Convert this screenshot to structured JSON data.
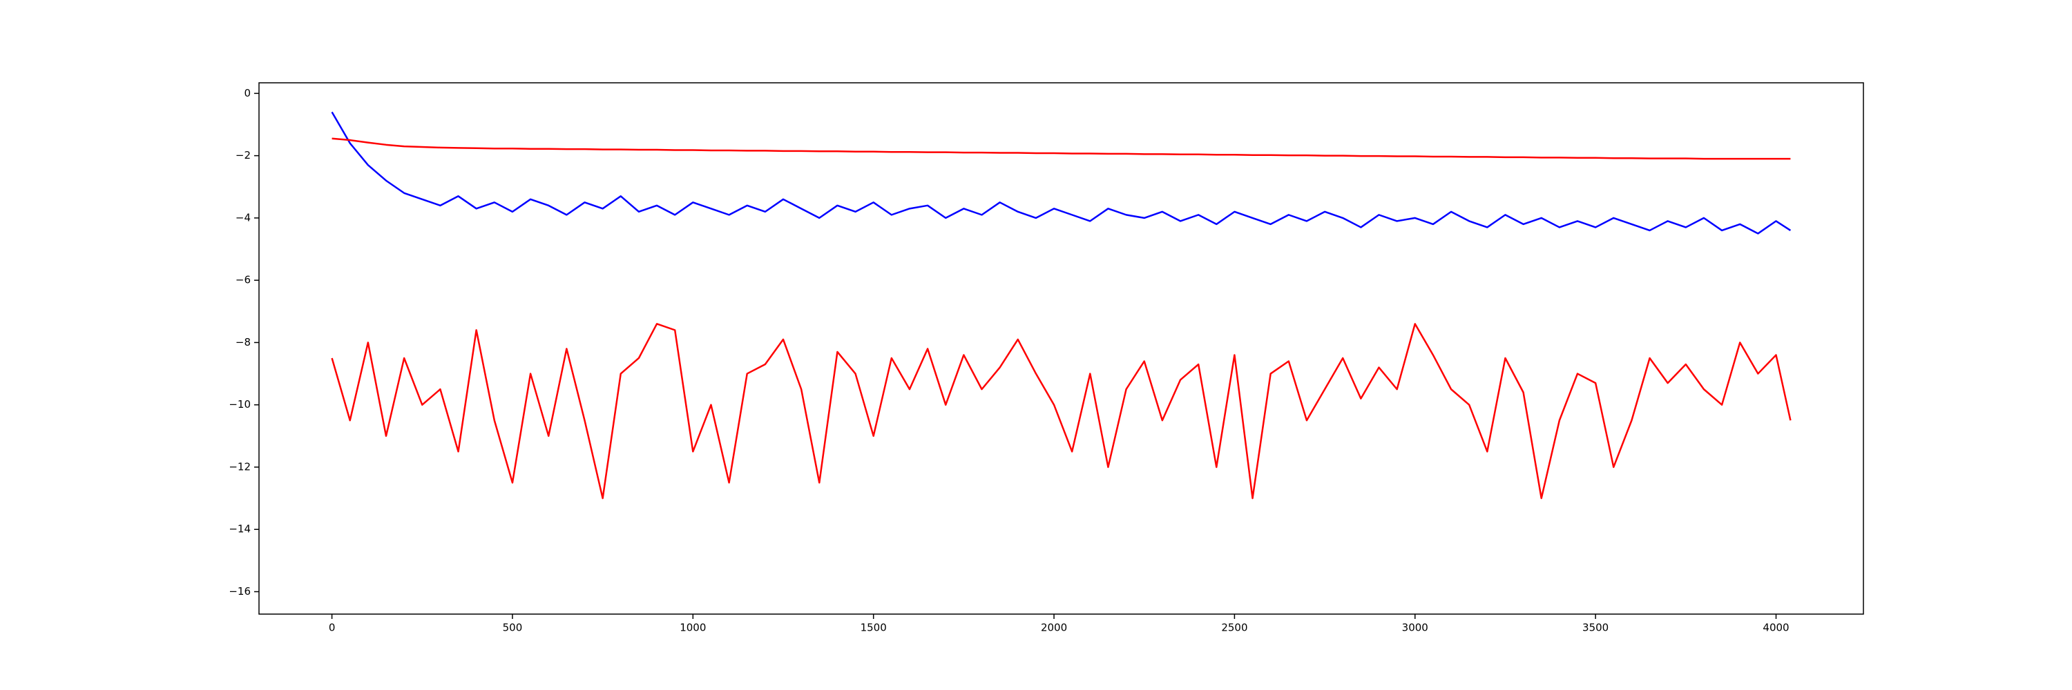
{
  "chart_data": {
    "type": "line",
    "x": [
      0,
      50,
      100,
      150,
      200,
      250,
      300,
      350,
      400,
      450,
      500,
      550,
      600,
      650,
      700,
      750,
      800,
      850,
      900,
      950,
      1000,
      1050,
      1100,
      1150,
      1200,
      1250,
      1300,
      1350,
      1400,
      1450,
      1500,
      1550,
      1600,
      1650,
      1700,
      1750,
      1800,
      1850,
      1900,
      1950,
      2000,
      2050,
      2100,
      2150,
      2200,
      2250,
      2300,
      2350,
      2400,
      2450,
      2500,
      2550,
      2600,
      2650,
      2700,
      2750,
      2800,
      2850,
      2900,
      2950,
      3000,
      3050,
      3100,
      3150,
      3200,
      3250,
      3300,
      3350,
      3400,
      3450,
      3500,
      3550,
      3600,
      3650,
      3700,
      3750,
      3800,
      3850,
      3900,
      3950,
      4000,
      4040
    ],
    "series": [
      {
        "color": "#0000ff",
        "values": [
          -0.6,
          -1.6,
          -2.3,
          -2.8,
          -3.2,
          -3.4,
          -3.6,
          -3.3,
          -3.7,
          -3.5,
          -3.8,
          -3.4,
          -3.6,
          -3.9,
          -3.5,
          -3.7,
          -3.3,
          -3.8,
          -3.6,
          -3.9,
          -3.5,
          -3.7,
          -3.9,
          -3.6,
          -3.8,
          -3.4,
          -3.7,
          -4.0,
          -3.6,
          -3.8,
          -3.5,
          -3.9,
          -3.7,
          -3.6,
          -4.0,
          -3.7,
          -3.9,
          -3.5,
          -3.8,
          -4.0,
          -3.7,
          -3.9,
          -4.1,
          -3.7,
          -3.9,
          -4.0,
          -3.8,
          -4.1,
          -3.9,
          -4.2,
          -3.8,
          -4.0,
          -4.2,
          -3.9,
          -4.1,
          -3.8,
          -4.0,
          -4.3,
          -3.9,
          -4.1,
          -4.0,
          -4.2,
          -3.8,
          -4.1,
          -4.3,
          -3.9,
          -4.2,
          -4.0,
          -4.3,
          -4.1,
          -4.3,
          -4.0,
          -4.2,
          -4.4,
          -4.1,
          -4.3,
          -4.0,
          -4.4,
          -4.2,
          -4.5,
          -4.1,
          -4.4
        ]
      },
      {
        "color": "#ff0000",
        "values": [
          -1.45,
          -1.5,
          -1.58,
          -1.65,
          -1.7,
          -1.72,
          -1.74,
          -1.75,
          -1.76,
          -1.77,
          -1.77,
          -1.78,
          -1.78,
          -1.79,
          -1.79,
          -1.8,
          -1.8,
          -1.81,
          -1.81,
          -1.82,
          -1.82,
          -1.83,
          -1.83,
          -1.84,
          -1.84,
          -1.85,
          -1.85,
          -1.86,
          -1.86,
          -1.87,
          -1.87,
          -1.88,
          -1.88,
          -1.89,
          -1.89,
          -1.9,
          -1.9,
          -1.91,
          -1.91,
          -1.92,
          -1.92,
          -1.93,
          -1.93,
          -1.94,
          -1.94,
          -1.95,
          -1.95,
          -1.96,
          -1.96,
          -1.97,
          -1.97,
          -1.98,
          -1.98,
          -1.99,
          -1.99,
          -2.0,
          -2.0,
          -2.01,
          -2.01,
          -2.02,
          -2.02,
          -2.03,
          -2.03,
          -2.04,
          -2.04,
          -2.05,
          -2.05,
          -2.06,
          -2.06,
          -2.07,
          -2.07,
          -2.08,
          -2.08,
          -2.09,
          -2.09,
          -2.09,
          -2.1,
          -2.1,
          -2.1,
          -2.1,
          -2.1,
          -2.1
        ]
      },
      {
        "color": "#ff0000",
        "values": [
          -8.5,
          -10.5,
          -8.0,
          -11.0,
          -8.5,
          -10.0,
          -9.5,
          -11.5,
          -7.6,
          -10.5,
          -12.5,
          -9.0,
          -11.0,
          -8.2,
          -10.5,
          -13.0,
          -9.0,
          -8.5,
          -7.4,
          -7.6,
          -11.5,
          -10.0,
          -12.5,
          -9.0,
          -8.7,
          -7.9,
          -9.5,
          -12.5,
          -8.3,
          -9.0,
          -11.0,
          -8.5,
          -9.5,
          -8.2,
          -10.0,
          -8.4,
          -9.5,
          -8.8,
          -7.9,
          -9.0,
          -10.0,
          -11.5,
          -9.0,
          -12.0,
          -9.5,
          -8.6,
          -10.5,
          -9.2,
          -8.7,
          -12.0,
          -8.4,
          -13.0,
          -9.0,
          -8.6,
          -10.5,
          -9.5,
          -8.5,
          -9.8,
          -8.8,
          -9.5,
          -7.4,
          -8.4,
          -9.5,
          -10.0,
          -11.5,
          -8.5,
          -9.6,
          -13.0,
          -10.5,
          -9.0,
          -9.3,
          -12.0,
          -10.5,
          -8.5,
          -9.3,
          -8.7,
          -9.5,
          -10.0,
          -8.0,
          -9.0,
          -8.4,
          -10.5
        ]
      }
    ],
    "xlim": [
      -202,
      4242
    ],
    "ylim": [
      -16.72,
      0.34
    ],
    "xticks": [
      0,
      500,
      1000,
      1500,
      2000,
      2500,
      3000,
      3500,
      4000
    ],
    "yticks": [
      {
        "value": -16,
        "label": "−16"
      },
      {
        "value": -14,
        "label": "−14"
      },
      {
        "value": -12,
        "label": "−12"
      },
      {
        "value": -10,
        "label": "−10"
      },
      {
        "value": -8,
        "label": "−8"
      },
      {
        "value": -6,
        "label": "−6"
      },
      {
        "value": -4,
        "label": "−4"
      },
      {
        "value": -2,
        "label": "−2"
      },
      0
    ],
    "grid": false
  }
}
